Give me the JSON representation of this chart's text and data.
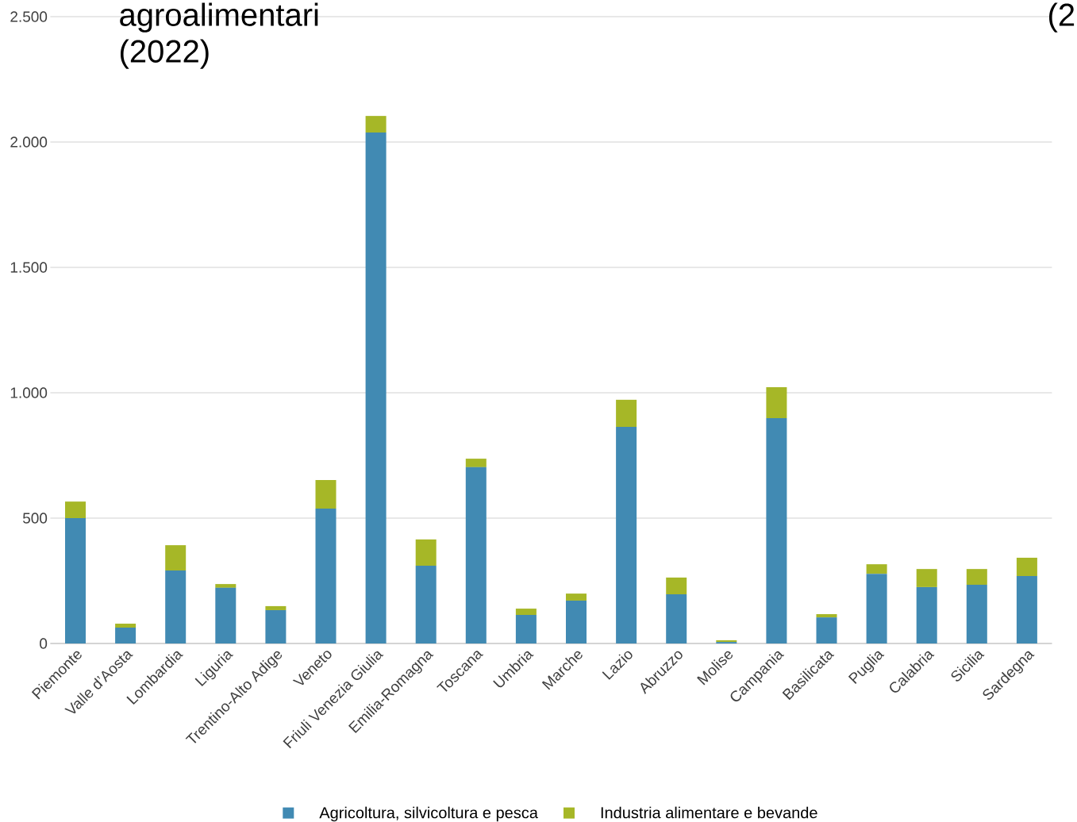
{
  "chart_data": {
    "type": "bar",
    "title": "agroalimentari (2022)",
    "annotations": [
      "(2"
    ],
    "categories": [
      "Piemonte",
      "Valle d’Aosta",
      "Lombardia",
      "Liguria",
      "Trentino-Alto Adige",
      "Veneto",
      "Friuli Venezia Giulia",
      "Emilia-Romagna",
      "Toscana",
      "Umbria",
      "Marche",
      "Lazio",
      "Abruzzo",
      "Molise",
      "Campania",
      "Basilicata",
      "Puglia",
      "Calabria",
      "Sicilia",
      "Sardegna"
    ],
    "stacked": true,
    "series": [
      {
        "name": "Agricoltura, silvicoltura e pesca",
        "color": "#418ab3",
        "values": [
          500,
          63,
          291,
          222,
          133,
          538,
          2038,
          310,
          703,
          114,
          171,
          864,
          196,
          6,
          899,
          104,
          278,
          225,
          234,
          269
        ]
      },
      {
        "name": "Industria alimentare e bevande",
        "color": "#a6b727",
        "values": [
          66,
          16,
          101,
          15,
          16,
          114,
          66,
          105,
          34,
          25,
          28,
          108,
          67,
          7,
          123,
          13,
          38,
          72,
          63,
          73
        ]
      }
    ],
    "ylim": [
      0,
      2500
    ],
    "yticks": [
      0,
      500,
      {
        "value": 1000,
        "label": "1.000"
      },
      {
        "value": 1500,
        "label": "1.500"
      },
      {
        "value": 2000,
        "label": "2.000"
      },
      {
        "value": 2500,
        "label": "2.500"
      }
    ],
    "grid": "y",
    "legend": "bottom"
  }
}
